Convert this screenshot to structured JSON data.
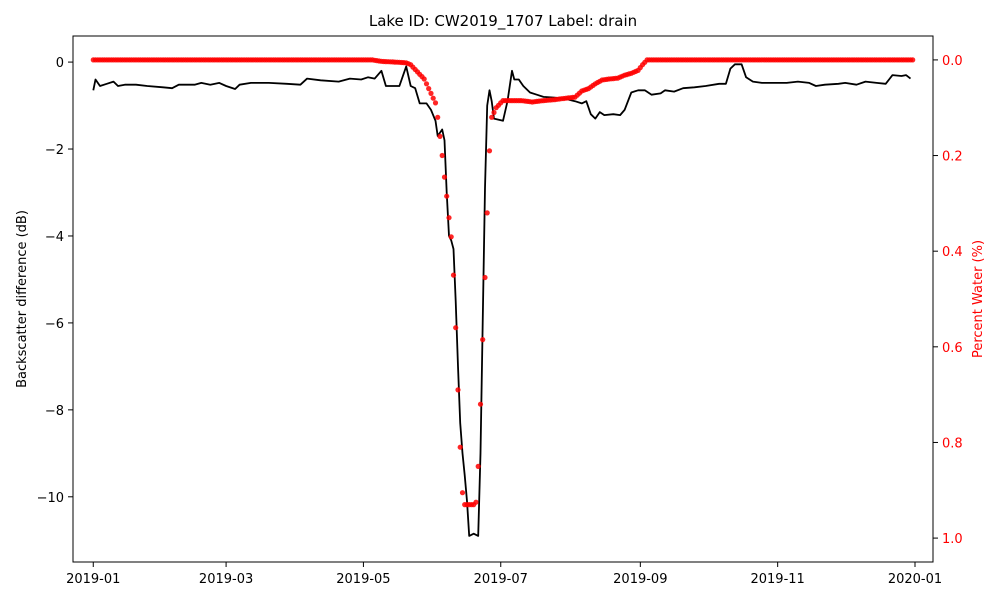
{
  "chart_data": {
    "type": "line",
    "title": "Lake ID: CW2019_1707 Label: drain",
    "xlabel": "",
    "ylabel": "Backscatter difference (dB)",
    "ylabel_right": "Percent Water (%)",
    "xlim": [
      "2018-12-23",
      "2020-01-09"
    ],
    "ylim": [
      -11.5,
      0.6
    ],
    "ylim_right": [
      1.05,
      -0.05
    ],
    "x_ticks": [
      "2019-01",
      "2019-03",
      "2019-05",
      "2019-07",
      "2019-09",
      "2019-11",
      "2020-01"
    ],
    "y_ticks": [
      0,
      -2,
      -4,
      -6,
      -8,
      -10
    ],
    "y_ticks_right": [
      0.0,
      0.2,
      0.4,
      0.6,
      0.8,
      1.0
    ],
    "grid": false,
    "colors": {
      "backscatter": "#000000",
      "water": "#ff0000"
    },
    "series": [
      {
        "name": "",
        "kind": "line",
        "axis": "left",
        "color": "#000000",
        "points": [
          [
            "2019-01-01",
            -0.65
          ],
          [
            "2019-01-02",
            -0.4
          ],
          [
            "2019-01-04",
            -0.55
          ],
          [
            "2019-01-07",
            -0.5
          ],
          [
            "2019-01-10",
            -0.45
          ],
          [
            "2019-01-12",
            -0.55
          ],
          [
            "2019-01-15",
            -0.52
          ],
          [
            "2019-01-20",
            -0.52
          ],
          [
            "2019-01-25",
            -0.55
          ],
          [
            "2019-02-01",
            -0.58
          ],
          [
            "2019-02-05",
            -0.6
          ],
          [
            "2019-02-08",
            -0.52
          ],
          [
            "2019-02-15",
            -0.52
          ],
          [
            "2019-02-18",
            -0.48
          ],
          [
            "2019-02-22",
            -0.52
          ],
          [
            "2019-02-26",
            -0.48
          ],
          [
            "2019-03-01",
            -0.55
          ],
          [
            "2019-03-05",
            -0.62
          ],
          [
            "2019-03-07",
            -0.52
          ],
          [
            "2019-03-12",
            -0.48
          ],
          [
            "2019-03-20",
            -0.48
          ],
          [
            "2019-03-28",
            -0.5
          ],
          [
            "2019-04-03",
            -0.52
          ],
          [
            "2019-04-06",
            -0.38
          ],
          [
            "2019-04-12",
            -0.42
          ],
          [
            "2019-04-20",
            -0.45
          ],
          [
            "2019-04-25",
            -0.38
          ],
          [
            "2019-04-30",
            -0.4
          ],
          [
            "2019-05-03",
            -0.35
          ],
          [
            "2019-05-06",
            -0.38
          ],
          [
            "2019-05-09",
            -0.2
          ],
          [
            "2019-05-11",
            -0.55
          ],
          [
            "2019-05-14",
            -0.55
          ],
          [
            "2019-05-17",
            -0.55
          ],
          [
            "2019-05-20",
            -0.1
          ],
          [
            "2019-05-22",
            -0.55
          ],
          [
            "2019-05-24",
            -0.6
          ],
          [
            "2019-05-26",
            -0.95
          ],
          [
            "2019-05-29",
            -0.95
          ],
          [
            "2019-05-31",
            -1.1
          ],
          [
            "2019-06-02",
            -1.35
          ],
          [
            "2019-06-03",
            -1.7
          ],
          [
            "2019-06-05",
            -1.55
          ],
          [
            "2019-06-06",
            -1.8
          ],
          [
            "2019-06-07",
            -3.0
          ],
          [
            "2019-06-08",
            -4.0
          ],
          [
            "2019-06-09",
            -4.1
          ],
          [
            "2019-06-10",
            -4.3
          ],
          [
            "2019-06-11",
            -5.5
          ],
          [
            "2019-06-12",
            -7.0
          ],
          [
            "2019-06-13",
            -8.3
          ],
          [
            "2019-06-14",
            -9.0
          ],
          [
            "2019-06-15",
            -9.5
          ],
          [
            "2019-06-16",
            -10.1
          ],
          [
            "2019-06-17",
            -10.9
          ],
          [
            "2019-06-19",
            -10.85
          ],
          [
            "2019-06-21",
            -10.9
          ],
          [
            "2019-06-22",
            -9.0
          ],
          [
            "2019-06-23",
            -6.0
          ],
          [
            "2019-06-24",
            -2.9
          ],
          [
            "2019-06-25",
            -1.0
          ],
          [
            "2019-06-26",
            -0.65
          ],
          [
            "2019-06-27",
            -0.9
          ],
          [
            "2019-06-28",
            -1.3
          ],
          [
            "2019-07-02",
            -1.35
          ],
          [
            "2019-07-04",
            -0.9
          ],
          [
            "2019-07-06",
            -0.2
          ],
          [
            "2019-07-07",
            -0.4
          ],
          [
            "2019-07-09",
            -0.4
          ],
          [
            "2019-07-11",
            -0.55
          ],
          [
            "2019-07-14",
            -0.7
          ],
          [
            "2019-07-17",
            -0.75
          ],
          [
            "2019-07-20",
            -0.8
          ],
          [
            "2019-07-25",
            -0.82
          ],
          [
            "2019-07-30",
            -0.85
          ],
          [
            "2019-08-03",
            -0.9
          ],
          [
            "2019-08-06",
            -0.95
          ],
          [
            "2019-08-08",
            -0.9
          ],
          [
            "2019-08-10",
            -1.2
          ],
          [
            "2019-08-12",
            -1.3
          ],
          [
            "2019-08-14",
            -1.15
          ],
          [
            "2019-08-16",
            -1.22
          ],
          [
            "2019-08-20",
            -1.2
          ],
          [
            "2019-08-23",
            -1.22
          ],
          [
            "2019-08-25",
            -1.1
          ],
          [
            "2019-08-28",
            -0.7
          ],
          [
            "2019-08-31",
            -0.65
          ],
          [
            "2019-09-03",
            -0.65
          ],
          [
            "2019-09-06",
            -0.75
          ],
          [
            "2019-09-10",
            -0.72
          ],
          [
            "2019-09-12",
            -0.65
          ],
          [
            "2019-09-16",
            -0.68
          ],
          [
            "2019-09-20",
            -0.6
          ],
          [
            "2019-09-25",
            -0.58
          ],
          [
            "2019-09-30",
            -0.55
          ],
          [
            "2019-10-06",
            -0.5
          ],
          [
            "2019-10-09",
            -0.5
          ],
          [
            "2019-10-11",
            -0.15
          ],
          [
            "2019-10-13",
            -0.05
          ],
          [
            "2019-10-16",
            -0.05
          ],
          [
            "2019-10-18",
            -0.35
          ],
          [
            "2019-10-21",
            -0.45
          ],
          [
            "2019-10-25",
            -0.48
          ],
          [
            "2019-11-01",
            -0.48
          ],
          [
            "2019-11-05",
            -0.48
          ],
          [
            "2019-11-10",
            -0.45
          ],
          [
            "2019-11-15",
            -0.48
          ],
          [
            "2019-11-18",
            -0.55
          ],
          [
            "2019-11-22",
            -0.52
          ],
          [
            "2019-11-28",
            -0.5
          ],
          [
            "2019-12-01",
            -0.48
          ],
          [
            "2019-12-06",
            -0.52
          ],
          [
            "2019-12-10",
            -0.45
          ],
          [
            "2019-12-15",
            -0.48
          ],
          [
            "2019-12-19",
            -0.5
          ],
          [
            "2019-12-22",
            -0.3
          ],
          [
            "2019-12-26",
            -0.32
          ],
          [
            "2019-12-28",
            -0.3
          ],
          [
            "2019-12-30",
            -0.38
          ]
        ]
      },
      {
        "name": "",
        "kind": "scatter",
        "axis": "right",
        "color": "#ff0000",
        "points": [
          [
            "2019-01-01",
            0.0
          ],
          [
            "2019-01-06",
            0.0
          ],
          [
            "2019-01-12",
            0.0
          ],
          [
            "2019-01-18",
            0.0
          ],
          [
            "2019-01-24",
            0.0
          ],
          [
            "2019-01-30",
            0.0
          ],
          [
            "2019-02-05",
            0.0
          ],
          [
            "2019-02-11",
            0.0
          ],
          [
            "2019-02-17",
            0.0
          ],
          [
            "2019-02-23",
            0.0
          ],
          [
            "2019-03-01",
            0.0
          ],
          [
            "2019-03-07",
            0.0
          ],
          [
            "2019-03-13",
            0.0
          ],
          [
            "2019-03-19",
            0.0
          ],
          [
            "2019-03-25",
            0.0
          ],
          [
            "2019-03-31",
            0.0
          ],
          [
            "2019-04-06",
            0.0
          ],
          [
            "2019-04-12",
            0.0
          ],
          [
            "2019-04-18",
            0.0
          ],
          [
            "2019-04-24",
            0.0
          ],
          [
            "2019-04-30",
            0.0
          ],
          [
            "2019-05-05",
            0.0
          ],
          [
            "2019-05-09",
            0.003
          ],
          [
            "2019-05-13",
            0.004
          ],
          [
            "2019-05-17",
            0.005
          ],
          [
            "2019-05-20",
            0.006
          ],
          [
            "2019-05-22",
            0.01
          ],
          [
            "2019-05-24",
            0.02
          ],
          [
            "2019-05-26",
            0.03
          ],
          [
            "2019-05-28",
            0.04
          ],
          [
            "2019-05-29",
            0.05
          ],
          [
            "2019-05-30",
            0.06
          ],
          [
            "2019-05-31",
            0.07
          ],
          [
            "2019-06-01",
            0.08
          ],
          [
            "2019-06-02",
            0.09
          ],
          [
            "2019-06-03",
            0.12
          ],
          [
            "2019-06-04",
            0.16
          ],
          [
            "2019-06-05",
            0.2
          ],
          [
            "2019-06-06",
            0.245
          ],
          [
            "2019-06-07",
            0.285
          ],
          [
            "2019-06-08",
            0.33
          ],
          [
            "2019-06-09",
            0.37
          ],
          [
            "2019-06-10",
            0.45
          ],
          [
            "2019-06-11",
            0.56
          ],
          [
            "2019-06-12",
            0.69
          ],
          [
            "2019-06-13",
            0.81
          ],
          [
            "2019-06-14",
            0.905
          ],
          [
            "2019-06-15",
            0.93
          ],
          [
            "2019-06-16",
            0.93
          ],
          [
            "2019-06-17",
            0.93
          ],
          [
            "2019-06-18",
            0.93
          ],
          [
            "2019-06-19",
            0.93
          ],
          [
            "2019-06-20",
            0.925
          ],
          [
            "2019-06-21",
            0.85
          ],
          [
            "2019-06-22",
            0.72
          ],
          [
            "2019-06-23",
            0.585
          ],
          [
            "2019-06-24",
            0.455
          ],
          [
            "2019-06-25",
            0.32
          ],
          [
            "2019-06-26",
            0.19
          ],
          [
            "2019-06-27",
            0.12
          ],
          [
            "2019-06-28",
            0.11
          ],
          [
            "2019-06-29",
            0.1
          ],
          [
            "2019-06-30",
            0.095
          ],
          [
            "2019-07-01",
            0.09
          ],
          [
            "2019-07-02",
            0.085
          ],
          [
            "2019-07-05",
            0.085
          ],
          [
            "2019-07-10",
            0.085
          ],
          [
            "2019-07-15",
            0.088
          ],
          [
            "2019-07-20",
            0.085
          ],
          [
            "2019-07-25",
            0.083
          ],
          [
            "2019-07-30",
            0.08
          ],
          [
            "2019-08-03",
            0.078
          ],
          [
            "2019-08-06",
            0.065
          ],
          [
            "2019-08-09",
            0.06
          ],
          [
            "2019-08-12",
            0.05
          ],
          [
            "2019-08-15",
            0.042
          ],
          [
            "2019-08-18",
            0.04
          ],
          [
            "2019-08-22",
            0.038
          ],
          [
            "2019-08-25",
            0.032
          ],
          [
            "2019-08-28",
            0.028
          ],
          [
            "2019-08-31",
            0.022
          ],
          [
            "2019-09-02",
            0.01
          ],
          [
            "2019-09-04",
            0.0
          ],
          [
            "2019-09-10",
            0.0
          ],
          [
            "2019-09-16",
            0.0
          ],
          [
            "2019-09-22",
            0.0
          ],
          [
            "2019-09-28",
            0.0
          ],
          [
            "2019-10-04",
            0.0
          ],
          [
            "2019-10-10",
            0.0
          ],
          [
            "2019-10-16",
            0.0
          ],
          [
            "2019-10-22",
            0.0
          ],
          [
            "2019-10-28",
            0.0
          ],
          [
            "2019-11-03",
            0.0
          ],
          [
            "2019-11-09",
            0.0
          ],
          [
            "2019-11-15",
            0.0
          ],
          [
            "2019-11-21",
            0.0
          ],
          [
            "2019-11-27",
            0.0
          ],
          [
            "2019-12-03",
            0.0
          ],
          [
            "2019-12-09",
            0.0
          ],
          [
            "2019-12-15",
            0.0
          ],
          [
            "2019-12-21",
            0.0
          ],
          [
            "2019-12-27",
            0.0
          ],
          [
            "2019-12-31",
            0.0
          ]
        ]
      }
    ]
  }
}
